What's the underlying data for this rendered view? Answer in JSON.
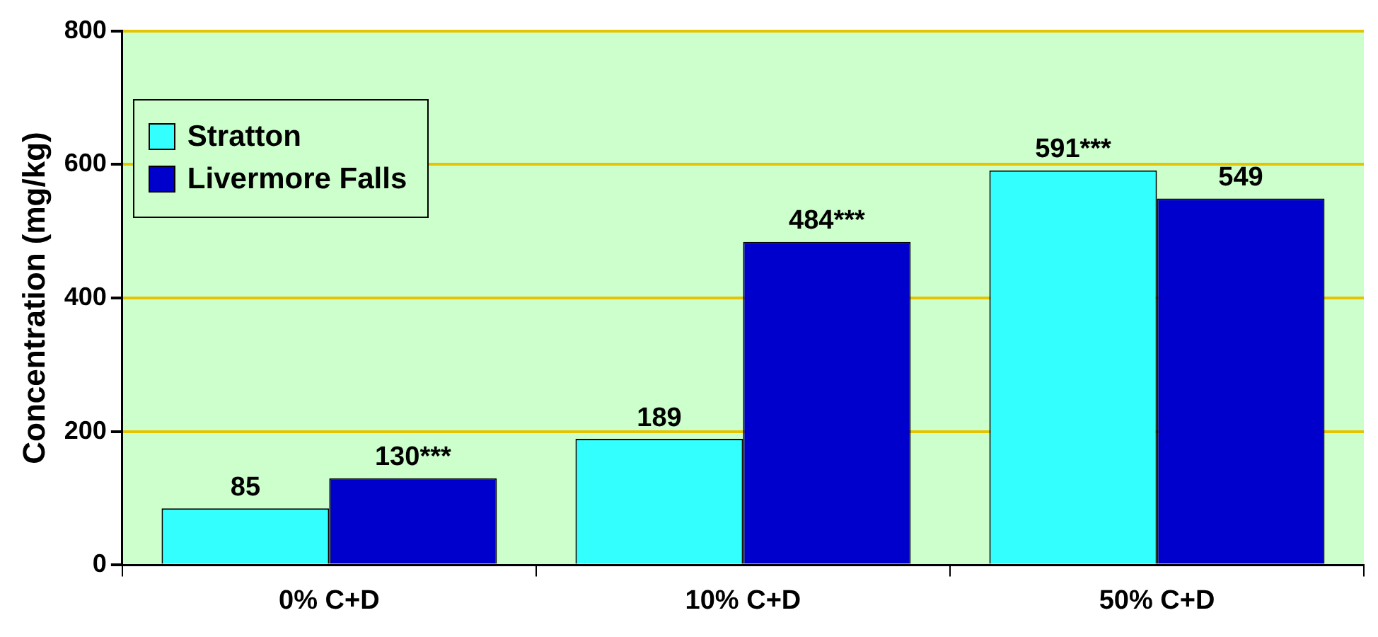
{
  "chart_data": {
    "type": "bar",
    "ylabel": "Concentration (mg/kg)",
    "categories": [
      "0% C+D",
      "10% C+D",
      "50% C+D"
    ],
    "series": [
      {
        "name": "Stratton",
        "color": "#33ffff",
        "values": [
          85,
          189,
          591
        ],
        "value_labels": [
          "85",
          "189",
          "591***"
        ]
      },
      {
        "name": "Livermore Falls",
        "color": "#0000cc",
        "values": [
          130,
          484,
          549
        ],
        "value_labels": [
          "130***",
          "484***",
          "549"
        ]
      }
    ],
    "ylim": [
      0,
      800
    ],
    "yticks": [
      0,
      200,
      400,
      600,
      800
    ],
    "grid": "y",
    "legend": "top left"
  }
}
